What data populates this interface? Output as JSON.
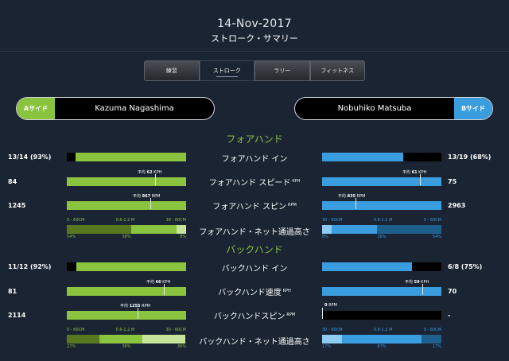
{
  "header": {
    "date": "14-Nov-2017",
    "title": "ストローク・サマリー"
  },
  "tabs": [
    {
      "label": "練習",
      "active": false
    },
    {
      "label": "ストローク",
      "active": true
    },
    {
      "label": "ラリー",
      "active": false
    },
    {
      "label": "フィットネス",
      "active": false
    }
  ],
  "players": {
    "a": {
      "side": "Aサイド",
      "name": "Kazuma Nagashima"
    },
    "b": {
      "side": "Bサイド",
      "name": "Nobuhiko Matsuba"
    }
  },
  "colors": {
    "a_side": "#8ac43f",
    "b_side": "#3a9de0",
    "background": "#1b2433"
  },
  "forehand": {
    "title": "フォアハンド",
    "in": {
      "label": "フォアハンド イン",
      "a": "13/14 (93%)",
      "b": "13/19 (68%)",
      "a_ratio": 0.93,
      "b_ratio": 0.68
    },
    "speed": {
      "label": "フォアハンド スピード",
      "unit": "KPH",
      "a": "84",
      "b": "75",
      "a_avg": "62",
      "b_avg": "61",
      "avg_label": "平均",
      "a_avg_ratio": 0.74,
      "b_avg_ratio": 0.82
    },
    "spin": {
      "label": "フォアハンド スピン",
      "unit": "RPM",
      "a": "1245",
      "b": "2963",
      "a_avg": "867",
      "b_avg": "835",
      "avg_label": "平均",
      "a_avg_ratio": 0.7,
      "b_avg_ratio": 0.28
    },
    "net": {
      "label": "フォアハンド・ネット通過高さ",
      "ranges_a": [
        "0 - 60CM",
        "0.6-1.2 M",
        "30 - 60CM"
      ],
      "ranges_b": [
        "30 - 60CM",
        "0.6-1.2 M",
        "0 - 60CM"
      ],
      "a": [
        "54%",
        "38%",
        "8%"
      ],
      "b": [
        "8%",
        "38%",
        "54%"
      ]
    }
  },
  "backhand": {
    "title": "バックハンド",
    "in": {
      "label": "バックハンド イン",
      "a": "11/12 (92%)",
      "b": "6/8 (75%)",
      "a_ratio": 0.92,
      "b_ratio": 0.75
    },
    "speed": {
      "label": "バックハンド速度",
      "unit": "KPH",
      "a": "81",
      "b": "70",
      "a_avg": "66",
      "b_avg": "59",
      "avg_label": "平均",
      "a_avg_ratio": 0.81,
      "b_avg_ratio": 0.84
    },
    "spin": {
      "label": "バックハンドスピン",
      "unit": "RPM",
      "a": "2114",
      "b": "-",
      "a_avg": "1255",
      "b_avg": "0",
      "avg_label": "平均",
      "a_avg_ratio": 0.59,
      "b_avg_ratio": 0.0
    },
    "net": {
      "label": "バックハンド・ネット通過高さ",
      "ranges_a": [
        "0 - 60CM",
        "0.6-1.2 M",
        "30 - 60CM"
      ],
      "ranges_b": [
        "30 - 60CM",
        "0.6-1.2 M",
        "0 - 60CM"
      ],
      "a": [
        "27%",
        "36%",
        "36%"
      ],
      "b": [
        "17%",
        "67%",
        "17%"
      ]
    }
  }
}
